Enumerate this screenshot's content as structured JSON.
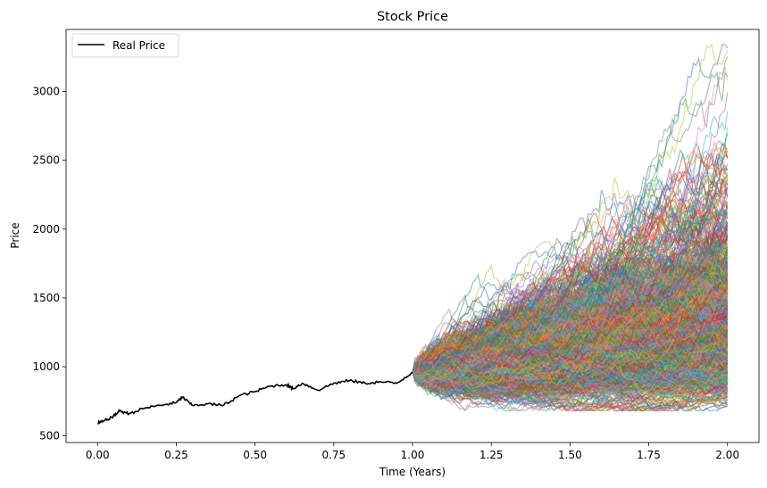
{
  "chart_data": {
    "type": "line",
    "title": "Stock Price",
    "xlabel": "Time (Years)",
    "ylabel": "Price",
    "xlim": [
      -0.1,
      2.1
    ],
    "ylim": [
      450,
      3450
    ],
    "xticks": [
      0.0,
      0.25,
      0.5,
      0.75,
      1.0,
      1.25,
      1.5,
      1.75,
      2.0
    ],
    "xtick_labels": [
      "0.00",
      "0.25",
      "0.50",
      "0.75",
      "1.00",
      "1.25",
      "1.50",
      "1.75",
      "2.00"
    ],
    "yticks": [
      500,
      1000,
      1500,
      2000,
      2500,
      3000
    ],
    "ytick_labels": [
      "500",
      "1000",
      "1500",
      "2000",
      "2500",
      "3000"
    ],
    "grid": false,
    "legend": {
      "position": "top-left",
      "entries": [
        "Real Price"
      ]
    },
    "real_price": {
      "name": "Real Price",
      "color": "#000000",
      "x": [
        0.0,
        0.02,
        0.05,
        0.07,
        0.1,
        0.15,
        0.2,
        0.25,
        0.27,
        0.3,
        0.35,
        0.4,
        0.45,
        0.5,
        0.55,
        0.6,
        0.62,
        0.65,
        0.7,
        0.75,
        0.8,
        0.85,
        0.9,
        0.95,
        1.0
      ],
      "y": [
        590,
        605,
        640,
        680,
        660,
        700,
        720,
        740,
        780,
        720,
        730,
        720,
        790,
        820,
        860,
        870,
        840,
        880,
        830,
        880,
        900,
        880,
        890,
        880,
        960
      ]
    },
    "simulations": {
      "count": 1000,
      "start_x": 1.0,
      "end_x": 2.0,
      "start_price": 960,
      "end_range": [
        700,
        3340
      ],
      "colors": [
        "#1f77b4",
        "#ff7f0e",
        "#2ca02c",
        "#d62728",
        "#9467bd",
        "#8c564b",
        "#e377c2",
        "#7f7f7f",
        "#bcbd22",
        "#17becf"
      ],
      "opacity": 0.5
    }
  }
}
